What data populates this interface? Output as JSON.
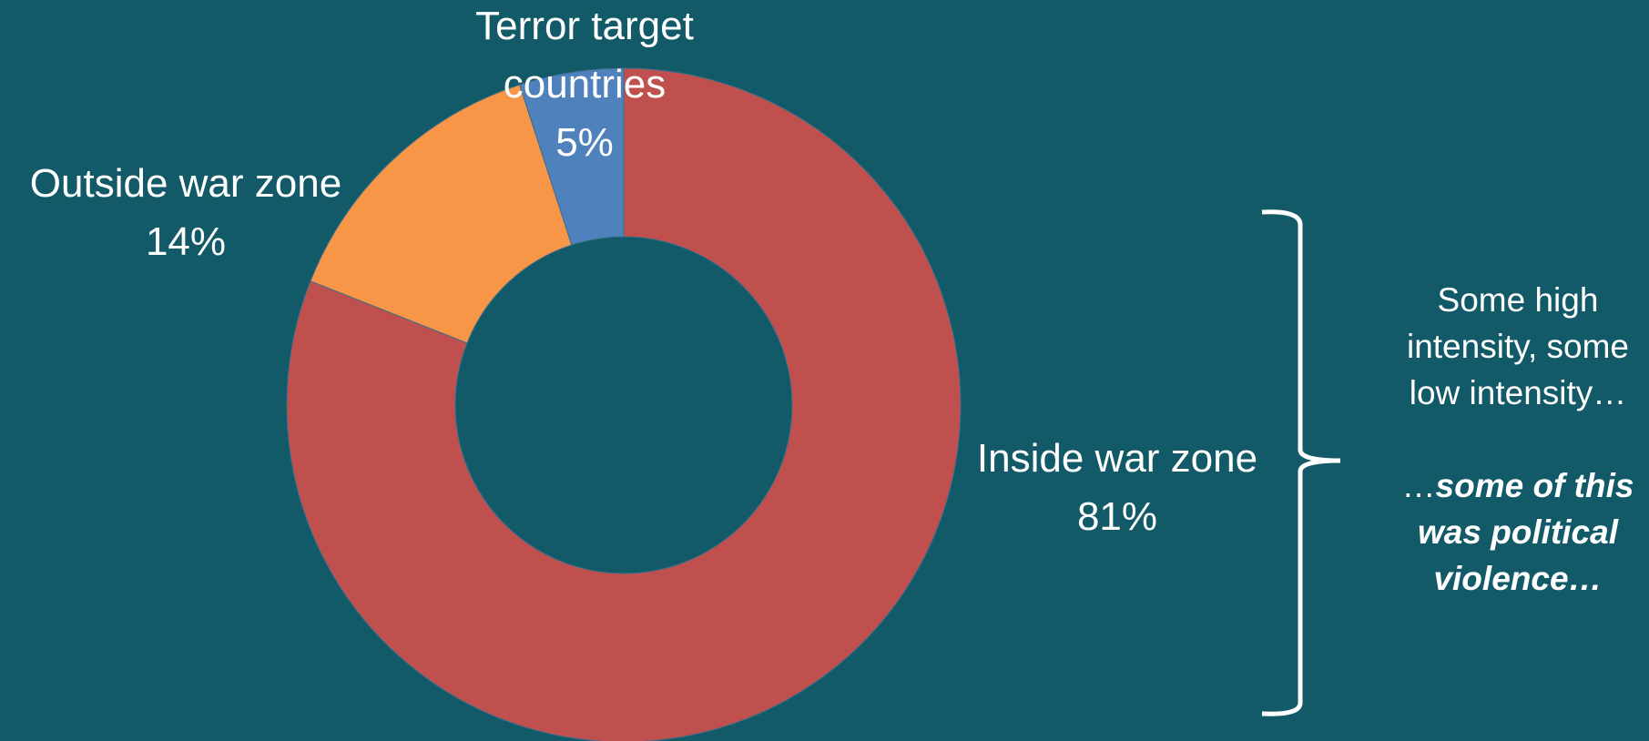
{
  "chart_data": {
    "type": "donut",
    "categories": [
      "Inside war zone",
      "Outside war zone",
      "Terror target countries"
    ],
    "values": [
      81,
      14,
      5
    ],
    "value_labels": [
      "81%",
      "14%",
      "5%"
    ],
    "colors": [
      "#c0504d",
      "#f79646",
      "#4f81bd"
    ],
    "annotations": [
      "Some high intensity, some low intensity…",
      "…",
      "some of this was political violence…"
    ]
  }
}
